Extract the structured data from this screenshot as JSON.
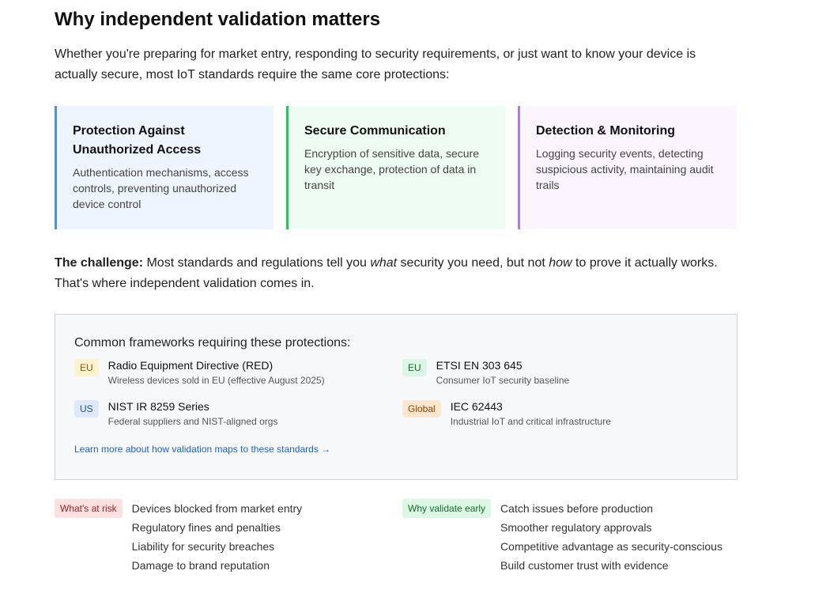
{
  "heading": "Why independent validation matters",
  "intro": "Whether you're preparing for market entry, responding to security requirements, or just want to know your device is actually secure, most IoT standards require the same core protections:",
  "cards": [
    {
      "title": "Protection Against Unauthorized Access",
      "text": "Authentication mechanisms, access controls, preventing unauthorized device control"
    },
    {
      "title": "Secure Communication",
      "text": "Encryption of sensitive data, secure key exchange, protection of data in transit"
    },
    {
      "title": "Detection & Monitoring",
      "text": "Logging security events, detecting suspicious activity, maintaining audit trails"
    }
  ],
  "challenge": {
    "label": "The challenge:",
    "parts": [
      " Most standards and regulations tell you ",
      "what",
      " security you need, but not ",
      "how",
      " to prove it actually works. That's where independent validation comes in."
    ]
  },
  "frameworks": {
    "title": "Common frameworks requiring these protections:",
    "items": [
      {
        "tag": "EU",
        "name": "Radio Equipment Directive (RED)",
        "desc": "Wireless devices sold in EU (effective August 2025)"
      },
      {
        "tag": "EU",
        "name": "ETSI EN 303 645",
        "desc": "Consumer IoT security baseline"
      },
      {
        "tag": "US",
        "name": "NIST IR 8259 Series",
        "desc": "Federal suppliers and NIST-aligned orgs"
      },
      {
        "tag": "Global",
        "name": "IEC 62443",
        "desc": "Industrial IoT and critical infrastructure"
      }
    ],
    "link": "Learn more about how validation maps to these standards →"
  },
  "risk": {
    "label": "What's at risk",
    "items": [
      "Devices blocked from market entry",
      "Regulatory fines and penalties",
      "Liability for security breaches",
      "Damage to brand reputation"
    ]
  },
  "early": {
    "label": "Why validate early",
    "items": [
      "Catch issues before production",
      "Smoother regulatory approvals",
      "Competitive advantage as security-conscious",
      "Build customer trust with evidence"
    ]
  }
}
